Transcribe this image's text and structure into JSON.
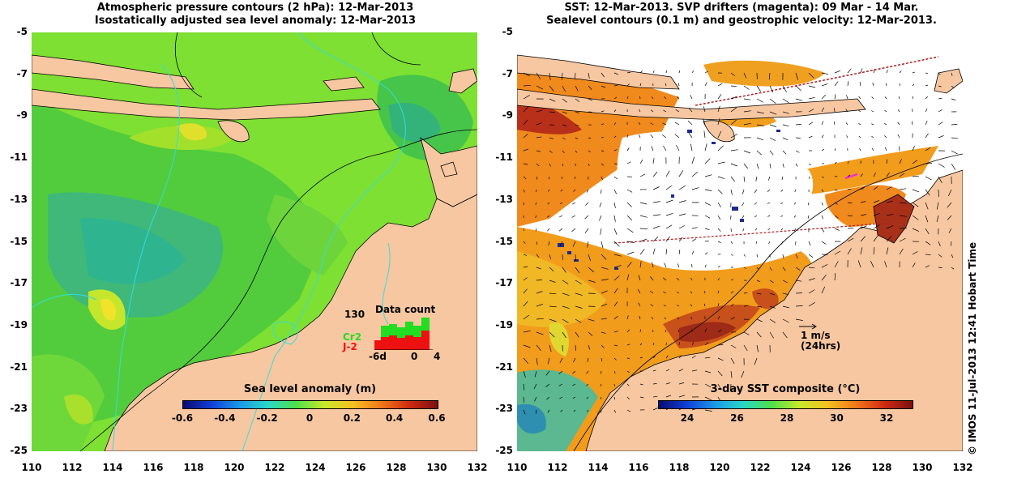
{
  "left_panel": {
    "title_line1": "Atmospheric pressure contours (2 hPa): 12-Mar-2013",
    "title_line2": "Isostatically adjusted sea level anomaly: 12-Mar-2013",
    "colorbar": {
      "title": "Sea level anomaly (m)",
      "ticks": [
        "-0.6",
        "-0.4",
        "-0.2",
        "0",
        "0.2",
        "0.4",
        "0.6"
      ]
    },
    "inset": {
      "title": "Data count",
      "max_label": "130",
      "series": [
        {
          "name": "Cr2",
          "color": "#22dd22"
        },
        {
          "name": "J-2",
          "color": "#ee1111"
        }
      ],
      "x_labels": [
        "-6d",
        "0",
        "4"
      ]
    }
  },
  "right_panel": {
    "title_line1": "SST: 12-Mar-2013. SVP drifters (magenta): 09 Mar - 14 Mar.",
    "title_line2": "Sealevel contours (0.1 m) and geostrophic velocity: 12-Mar-2013.",
    "colorbar": {
      "title": "3-day SST composite (°C)",
      "ticks": [
        "24",
        "26",
        "28",
        "30",
        "32"
      ]
    },
    "velocity_key": {
      "line1": "1 m/s",
      "line2": "(24hrs)"
    }
  },
  "axes": {
    "lat_ticks": [
      "-5",
      "-7",
      "-9",
      "-11",
      "-13",
      "-15",
      "-17",
      "-19",
      "-21",
      "-23",
      "-25"
    ],
    "lon_ticks": [
      "110",
      "112",
      "114",
      "116",
      "118",
      "120",
      "122",
      "124",
      "126",
      "128",
      "130",
      "132"
    ]
  },
  "credit": "© IMOS 11-Jul-2013 12:41 Hobart Time",
  "colors": {
    "land": "#f7c7a1",
    "sea_green": "#55d03a",
    "sst_orange": "#f08a1c",
    "cloud_white": "#ffffff",
    "contour_cyan": "#33dddd"
  }
}
